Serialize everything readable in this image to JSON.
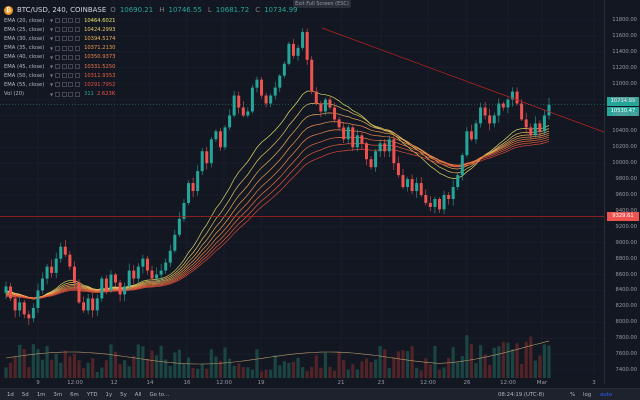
{
  "header": {
    "symbol": "BTC/USD, 240, COINBASE",
    "ohlc": [
      {
        "label": "O",
        "value": "10690.21"
      },
      {
        "label": "H",
        "value": "10746.55"
      },
      {
        "label": "L",
        "value": "10681.72"
      },
      {
        "label": "C",
        "value": "10734.99"
      }
    ]
  },
  "exit_full_screen": "Exit Full Screen (ESC)",
  "indicators": [
    {
      "name": "EMA (20, close)",
      "value": "10464.6021",
      "color": "#e6e16a"
    },
    {
      "name": "EMA (25, close)",
      "value": "10424.2993",
      "color": "#ecc965"
    },
    {
      "name": "EMA (30, close)",
      "value": "10394.5174",
      "color": "#f0b45a"
    },
    {
      "name": "EMA (35, close)",
      "value": "10371.2130",
      "color": "#f29f52"
    },
    {
      "name": "EMA (40, close)",
      "value": "10350.9373",
      "color": "#f18a4b"
    },
    {
      "name": "EMA (45, close)",
      "value": "10331.5250",
      "color": "#ef7544"
    },
    {
      "name": "EMA (50, close)",
      "value": "10311.9353",
      "color": "#ea613f"
    },
    {
      "name": "EMA (55, close)",
      "value": "10291.7952",
      "color": "#e34d3c"
    }
  ],
  "volume": {
    "name": "Vol (20)",
    "value1": "311",
    "value2": "2.623K"
  },
  "price_axis": {
    "ticks": [
      "11800.00",
      "11600.00",
      "11400.00",
      "11200.00",
      "11000.00",
      "10800.00",
      "10600.00",
      "10400.00",
      "10200.00",
      "10000.00",
      "9800.00",
      "9600.00",
      "9400.00",
      "9200.00",
      "9000.00",
      "8800.00",
      "8600.00",
      "8400.00",
      "8200.00",
      "8000.00",
      "7800.00",
      "7600.00",
      "7400.00"
    ],
    "labels": {
      "last_price": "10734.99",
      "ema_price": "10530.47",
      "horizontal_line": "9329.61"
    }
  },
  "time_axis": [
    "9",
    "12:00",
    "12",
    "14",
    "16",
    "12:00",
    "19",
    "21",
    "23",
    "12:00",
    "26",
    "12:00",
    "Mar",
    "3"
  ],
  "toolbar": {
    "ranges": [
      "1d",
      "5d",
      "1m",
      "3m",
      "6m",
      "YTD",
      "1y",
      "5y",
      "All",
      "Go to..."
    ],
    "clock": "08:24:19 (UTC-8)",
    "controls": [
      "%",
      "log",
      "auto"
    ]
  },
  "colors": {
    "background": "#131722",
    "up": "#26a69a",
    "down": "#ef5350",
    "trendline": "#b22222",
    "accent": "#2962ff"
  },
  "chart_data": {
    "type": "candlestick",
    "symbol": "BTC/USD",
    "interval": "240",
    "exchange": "COINBASE",
    "ylim": [
      7400,
      11800
    ],
    "closes": [
      8450,
      8300,
      8150,
      8250,
      8100,
      8050,
      8180,
      8400,
      8550,
      8700,
      8620,
      8800,
      8950,
      8850,
      8700,
      8500,
      8250,
      8150,
      8300,
      8150,
      8300,
      8550,
      8400,
      8600,
      8500,
      8350,
      8450,
      8650,
      8550,
      8700,
      8800,
      8650,
      8550,
      8600,
      8650,
      8750,
      8900,
      9100,
      9300,
      9500,
      9750,
      9650,
      9900,
      10150,
      10000,
      10300,
      10400,
      10200,
      10450,
      10600,
      10850,
      10700,
      10600,
      10650,
      10950,
      11050,
      10850,
      10750,
      10850,
      10950,
      11100,
      11250,
      11500,
      11350,
      11450,
      11650,
      11300,
      10900,
      10750,
      10650,
      10800,
      10700,
      10550,
      10450,
      10300,
      10450,
      10200,
      10350,
      10250,
      10050,
      9950,
      10150,
      10250,
      10150,
      10300,
      10000,
      9850,
      9700,
      9800,
      9650,
      9750,
      9600,
      9500,
      9450,
      9550,
      9420,
      9600,
      9550,
      9700,
      9850,
      10100,
      10400,
      10300,
      10500,
      10700,
      10600,
      10500,
      10600,
      10750,
      10700,
      10800,
      10900,
      10750,
      10550,
      10450,
      10350,
      10500,
      10400,
      10600,
      10734.99
    ],
    "ema_last_values": [
      10464.6021,
      10424.2993,
      10394.5174,
      10371.213,
      10350.9373,
      10331.525,
      10311.9353,
      10291.7952
    ]
  }
}
